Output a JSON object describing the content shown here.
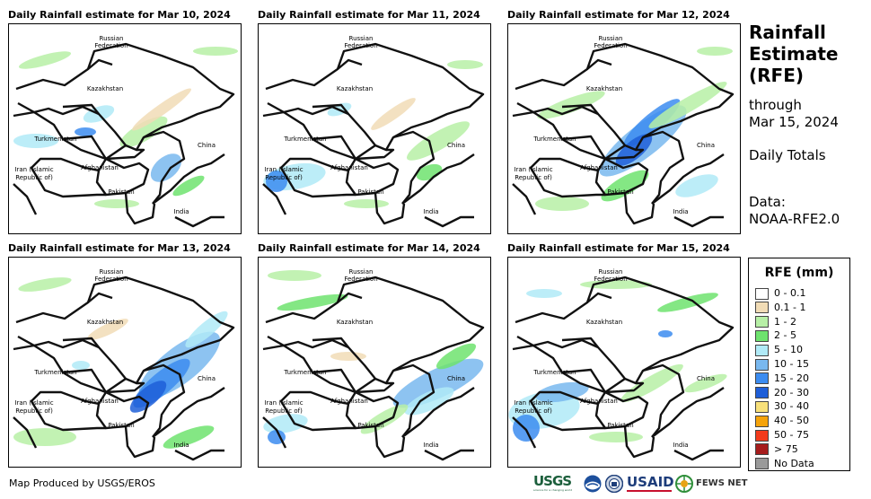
{
  "panels": [
    {
      "title": "Daily Rainfall estimate for Mar 10, 2024"
    },
    {
      "title": "Daily Rainfall estimate for Mar 11, 2024"
    },
    {
      "title": "Daily Rainfall estimate for Mar 12, 2024"
    },
    {
      "title": "Daily Rainfall estimate for Mar 13, 2024"
    },
    {
      "title": "Daily Rainfall estimate for Mar 14, 2024"
    },
    {
      "title": "Daily Rainfall estimate for Mar 15, 2024"
    }
  ],
  "map_labels": {
    "russia1": "Russian",
    "russia2": "Federation",
    "kazakhstan": "Kazakhstan",
    "turkmenistan": "Turkmenistan",
    "china": "China",
    "iran1": "Iran  (Islamic",
    "iran2": "Republic of)",
    "afghanistan": "Afghanistan",
    "pakistan": "Pakistan",
    "india": "India"
  },
  "sidebar": {
    "title_line1": "Rainfall",
    "title_line2": "Estimate",
    "title_line3": "(RFE)",
    "through": "through",
    "date": "Mar 15, 2024",
    "totals": "Daily Totals",
    "data_label": "Data:",
    "data_source": "NOAA-RFE2.0"
  },
  "legend": {
    "title": "RFE (mm)",
    "items": [
      {
        "label": "0 - 0.1",
        "color": "#ffffff"
      },
      {
        "label": "0.1 - 1",
        "color": "#f1dcb6"
      },
      {
        "label": "1 - 2",
        "color": "#b7f0a6"
      },
      {
        "label": "2 - 5",
        "color": "#6ee36e"
      },
      {
        "label": "5 - 10",
        "color": "#b0eaf7"
      },
      {
        "label": "10 - 15",
        "color": "#79b8ef"
      },
      {
        "label": "15 - 20",
        "color": "#3c8cf0"
      },
      {
        "label": "20 - 30",
        "color": "#1f5fd8"
      },
      {
        "label": "30 - 40",
        "color": "#f7e07a"
      },
      {
        "label": "40 - 50",
        "color": "#f5a30a"
      },
      {
        "label": "50 - 75",
        "color": "#f23b1c"
      },
      {
        "label": "> 75",
        "color": "#a61c1c"
      },
      {
        "label": "No Data",
        "color": "#9a9a9a"
      }
    ]
  },
  "footer": {
    "credit": "Map Produced by USGS/EROS"
  },
  "logos": {
    "usgs": "USGS",
    "usgs_tag": "science for a changing world",
    "usaid": "USAID",
    "fews": "FEWS NET"
  }
}
